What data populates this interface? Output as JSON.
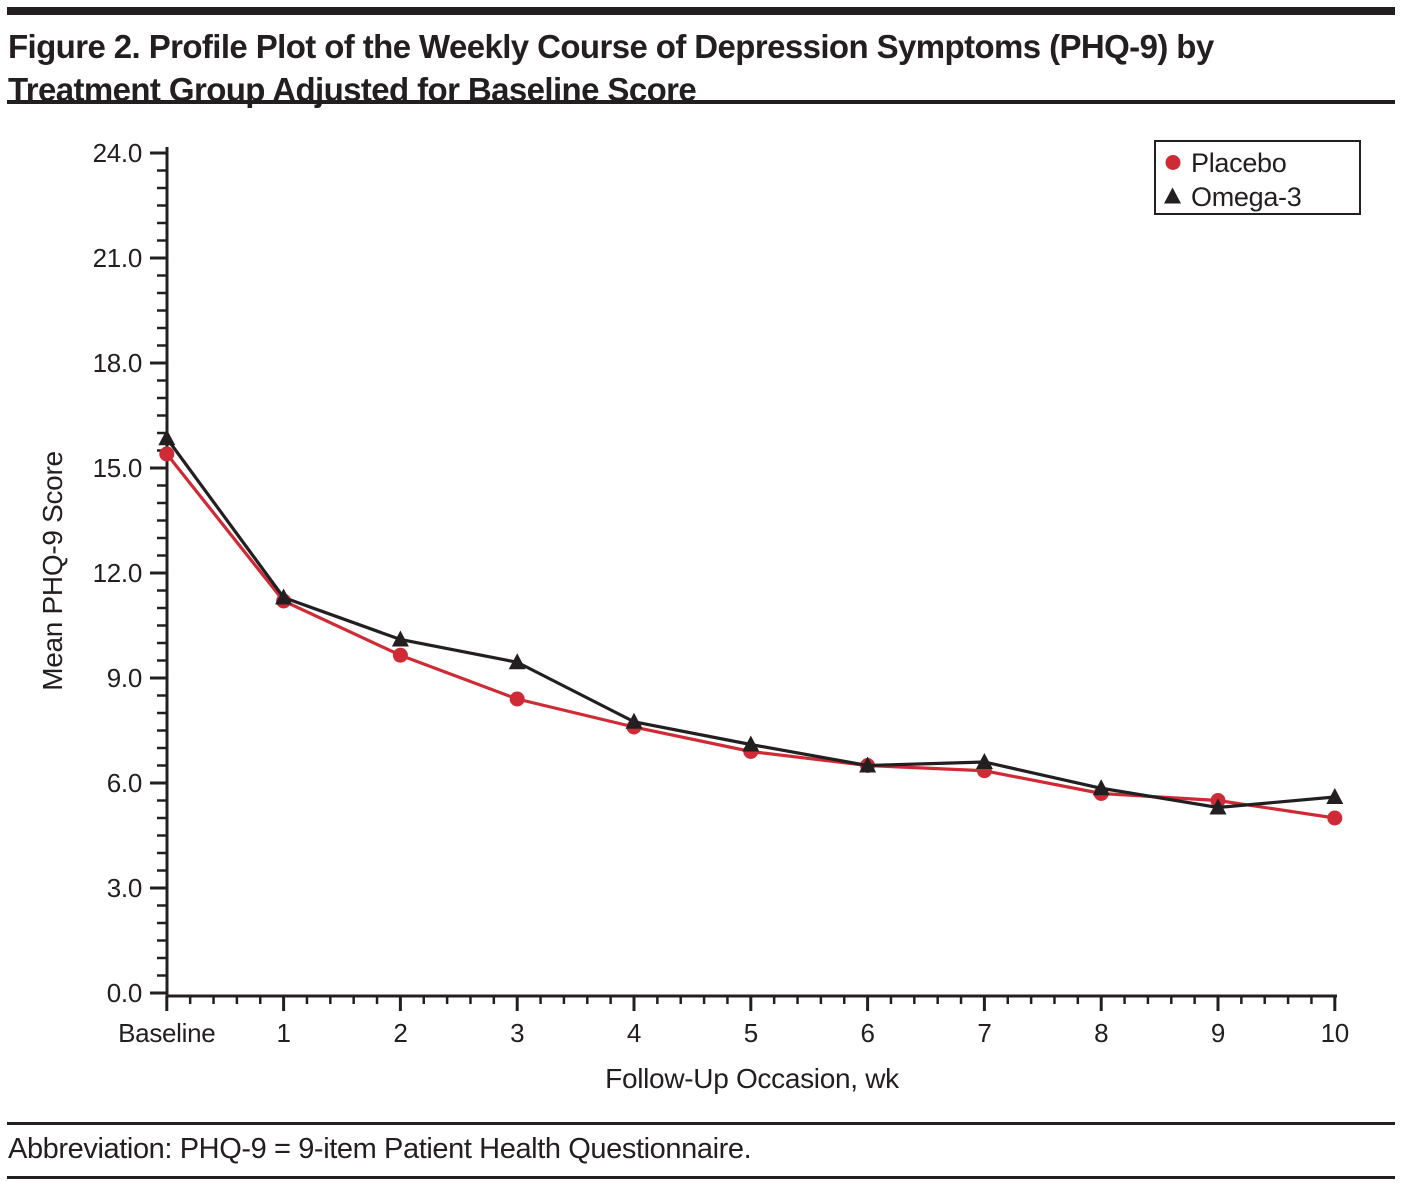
{
  "figure": {
    "title_line1": "Figure 2. Profile Plot of the Weekly Course of Depression Symptoms (PHQ-9) by",
    "title_line2": "Treatment Group Adjusted for Baseline Score",
    "footnote": "Abbreviation: PHQ-9 = 9-item Patient Health Questionnaire."
  },
  "colors": {
    "ink": "#231F20",
    "placebo_red": "#CF2B37",
    "omega3_black": "#231F20",
    "background": "#FFFFFF"
  },
  "chart_data": {
    "type": "line",
    "title": "",
    "xlabel": "Follow-Up Occasion, wk",
    "ylabel": "Mean PHQ-9 Score",
    "categories": [
      "Baseline",
      "1",
      "2",
      "3",
      "4",
      "5",
      "6",
      "7",
      "8",
      "9",
      "10"
    ],
    "ylim": [
      0.0,
      24.0
    ],
    "ytick_major_step": 3.0,
    "ytick_minor_step": 0.5,
    "ytick_label_format": "one-decimal",
    "xtick_minor_divisions": 5,
    "grid": false,
    "legend_position": "top-right",
    "legend_entries": [
      "Placebo",
      "Omega-3"
    ],
    "series": [
      {
        "name": "Placebo",
        "marker": "circle",
        "color": "#CF2B37",
        "values": [
          15.4,
          11.2,
          9.65,
          8.4,
          7.6,
          6.9,
          6.5,
          6.35,
          5.7,
          5.5,
          5.0
        ]
      },
      {
        "name": "Omega-3",
        "marker": "triangle",
        "color": "#231F20",
        "values": [
          15.85,
          11.3,
          10.1,
          9.45,
          7.75,
          7.1,
          6.5,
          6.6,
          5.85,
          5.3,
          5.6
        ]
      }
    ]
  }
}
